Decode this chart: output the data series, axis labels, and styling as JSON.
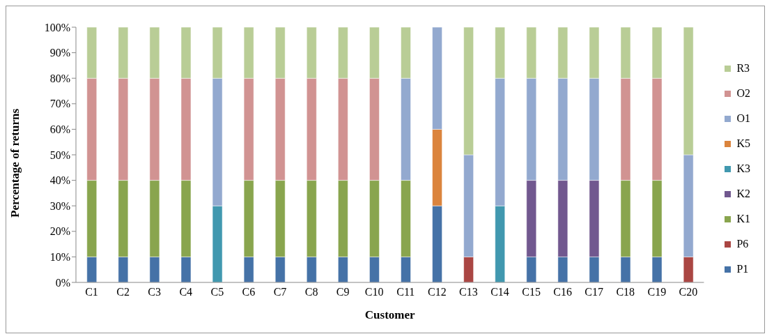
{
  "chart_data": {
    "type": "bar",
    "stacked": true,
    "xlabel": "Customer",
    "ylabel": "Percentage of returns",
    "categories": [
      "C1",
      "C2",
      "C3",
      "C4",
      "C5",
      "C6",
      "C7",
      "C8",
      "C9",
      "C10",
      "C11",
      "C12",
      "C13",
      "C14",
      "C15",
      "C16",
      "C17",
      "C18",
      "C19",
      "C20"
    ],
    "series": [
      {
        "name": "P1",
        "color": "#4572a7",
        "values": [
          10,
          10,
          10,
          10,
          0,
          10,
          10,
          10,
          10,
          10,
          10,
          30,
          0,
          0,
          10,
          10,
          10,
          10,
          10,
          0
        ]
      },
      {
        "name": "P6",
        "color": "#aa4643",
        "values": [
          0,
          0,
          0,
          0,
          0,
          0,
          0,
          0,
          0,
          0,
          0,
          0,
          10,
          0,
          0,
          0,
          0,
          0,
          0,
          10
        ]
      },
      {
        "name": "K1",
        "color": "#89a54e",
        "values": [
          30,
          30,
          30,
          30,
          0,
          30,
          30,
          30,
          30,
          30,
          30,
          0,
          0,
          0,
          0,
          0,
          0,
          30,
          30,
          0
        ]
      },
      {
        "name": "K2",
        "color": "#71588f",
        "values": [
          0,
          0,
          0,
          0,
          0,
          0,
          0,
          0,
          0,
          0,
          0,
          0,
          0,
          0,
          30,
          30,
          30,
          0,
          0,
          0
        ]
      },
      {
        "name": "K3",
        "color": "#4198af",
        "values": [
          0,
          0,
          0,
          0,
          30,
          0,
          0,
          0,
          0,
          0,
          0,
          0,
          0,
          30,
          0,
          0,
          0,
          0,
          0,
          0
        ]
      },
      {
        "name": "K5",
        "color": "#db843d",
        "values": [
          0,
          0,
          0,
          0,
          0,
          0,
          0,
          0,
          0,
          0,
          0,
          30,
          0,
          0,
          0,
          0,
          0,
          0,
          0,
          0
        ]
      },
      {
        "name": "O1",
        "color": "#93a9cf",
        "values": [
          0,
          0,
          0,
          0,
          50,
          0,
          0,
          0,
          0,
          0,
          40,
          40,
          40,
          50,
          40,
          40,
          40,
          0,
          0,
          40
        ]
      },
      {
        "name": "O2",
        "color": "#d19392",
        "values": [
          40,
          40,
          40,
          40,
          0,
          40,
          40,
          40,
          40,
          40,
          0,
          0,
          0,
          0,
          0,
          0,
          0,
          40,
          40,
          0
        ]
      },
      {
        "name": "R3",
        "color": "#b9cd96",
        "values": [
          20,
          20,
          20,
          20,
          20,
          20,
          20,
          20,
          20,
          20,
          20,
          0,
          50,
          20,
          20,
          20,
          20,
          20,
          20,
          50
        ]
      }
    ],
    "ylim": [
      0,
      100
    ],
    "yticks": [
      {
        "value": 0,
        "label": "0%"
      },
      {
        "value": 10,
        "label": "10%"
      },
      {
        "value": 20,
        "label": "20%"
      },
      {
        "value": 30,
        "label": "30%"
      },
      {
        "value": 40,
        "label": "40%"
      },
      {
        "value": 50,
        "label": "50%"
      },
      {
        "value": 60,
        "label": "60%"
      },
      {
        "value": 70,
        "label": "70%"
      },
      {
        "value": 80,
        "label": "80%"
      },
      {
        "value": 90,
        "label": "90%"
      },
      {
        "value": 100,
        "label": "100%"
      }
    ],
    "legend": "right",
    "grid": false
  }
}
